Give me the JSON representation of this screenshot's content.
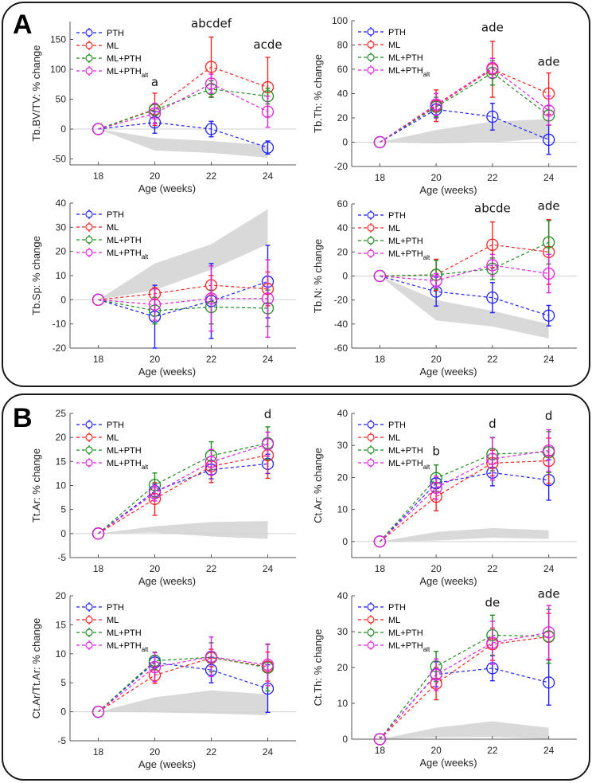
{
  "panels": [
    {
      "letter": "A"
    },
    {
      "letter": "B"
    }
  ],
  "legend": {
    "series": [
      {
        "name": "PTH",
        "base": "PTH",
        "sub": "",
        "color": "#1f1fff"
      },
      {
        "name": "ML",
        "base": "ML",
        "sub": "",
        "color": "#ff2020"
      },
      {
        "name": "ML+PTH",
        "base": "ML+PTH",
        "sub": "",
        "color": "#1e8c1e"
      },
      {
        "name": "ML+PTHalt",
        "base": "ML+PTH",
        "sub": "alt",
        "color": "#e020e0"
      }
    ]
  },
  "chart_data": [
    {
      "type": "line",
      "panel": "A",
      "position": "top-left",
      "ylabel": "Tb.BV/TV: % change",
      "xlabel": "Age (weeks)",
      "x": [
        18,
        20,
        22,
        24
      ],
      "xlim": [
        17,
        25
      ],
      "ylim": [
        -60,
        180
      ],
      "yticks": [
        -50,
        0,
        50,
        100,
        150
      ],
      "xticks": [
        18,
        20,
        22,
        24
      ],
      "legend": "top-left",
      "band": {
        "upper": [
          0,
          -15,
          -20,
          -27
        ],
        "lower": [
          0,
          -36,
          -40,
          -48
        ]
      },
      "series": [
        {
          "name": "PTH",
          "values": [
            0,
            11,
            0,
            -31
          ],
          "err": [
            0,
            18,
            13,
            11
          ]
        },
        {
          "name": "ML",
          "values": [
            0,
            33,
            104,
            70
          ],
          "err": [
            0,
            27,
            50,
            50
          ]
        },
        {
          "name": "ML+PTH",
          "values": [
            0,
            32,
            67,
            55
          ],
          "err": [
            0,
            10,
            14,
            13
          ]
        },
        {
          "name": "ML+PTHalt",
          "values": [
            0,
            26,
            76,
            29
          ],
          "err": [
            0,
            17,
            16,
            26
          ]
        }
      ],
      "annotations": [
        {
          "x": 20,
          "text": "a",
          "y": 72
        },
        {
          "x": 22,
          "text": "abcdef",
          "y": 170
        },
        {
          "x": 24,
          "text": "acde",
          "y": 135
        }
      ]
    },
    {
      "type": "line",
      "panel": "A",
      "position": "top-right",
      "ylabel": "Tb.Th: % change",
      "xlabel": "Age (weeks)",
      "x": [
        18,
        20,
        22,
        24
      ],
      "xlim": [
        17,
        25
      ],
      "ylim": [
        -20,
        100
      ],
      "yticks": [
        -20,
        0,
        20,
        40,
        60,
        80,
        100
      ],
      "xticks": [
        18,
        20,
        22,
        24
      ],
      "legend": "top-left",
      "band": {
        "upper": [
          0,
          10,
          17,
          19
        ],
        "lower": [
          0,
          -1,
          0,
          3
        ]
      },
      "series": [
        {
          "name": "PTH",
          "values": [
            0,
            27,
            21,
            2
          ],
          "err": [
            0,
            7,
            11,
            12
          ]
        },
        {
          "name": "ML",
          "values": [
            0,
            30,
            60,
            40
          ],
          "err": [
            0,
            13,
            23,
            17
          ]
        },
        {
          "name": "ML+PTH",
          "values": [
            0,
            29,
            57,
            22
          ],
          "err": [
            0,
            8,
            10,
            8
          ]
        },
        {
          "name": "ML+PTHalt",
          "values": [
            0,
            31,
            61,
            26
          ],
          "err": [
            0,
            9,
            8,
            12
          ]
        }
      ],
      "annotations": [
        {
          "x": 22,
          "text": "ade",
          "y": 91
        },
        {
          "x": 24,
          "text": "ade",
          "y": 63
        }
      ]
    },
    {
      "type": "line",
      "panel": "A",
      "position": "bottom-left",
      "ylabel": "Tb.Sp: % change",
      "xlabel": "Age (weeks)",
      "x": [
        18,
        20,
        22,
        24
      ],
      "xlim": [
        17,
        25
      ],
      "ylim": [
        -20,
        40
      ],
      "yticks": [
        -20,
        -10,
        0,
        10,
        20,
        30,
        40
      ],
      "xticks": [
        18,
        20,
        22,
        24
      ],
      "legend": "top-left",
      "band": {
        "upper": [
          0,
          15,
          23,
          37.5
        ],
        "lower": [
          0,
          4,
          12.5,
          23
        ]
      },
      "series": [
        {
          "name": "PTH",
          "values": [
            0,
            -7,
            -0.5,
            7.5
          ],
          "err": [
            0,
            13,
            15.5,
            15
          ]
        },
        {
          "name": "ML",
          "values": [
            0,
            2.5,
            6,
            4.5
          ],
          "err": [
            0,
            2.5,
            4,
            7
          ]
        },
        {
          "name": "ML+PTH",
          "values": [
            0,
            -4.5,
            -3,
            -3.5
          ],
          "err": [
            0,
            5.5,
            7,
            7.5
          ]
        },
        {
          "name": "ML+PTHalt",
          "values": [
            0,
            -2,
            0.5,
            0.5
          ],
          "err": [
            0,
            6.5,
            13.5,
            16
          ]
        }
      ],
      "annotations": []
    },
    {
      "type": "line",
      "panel": "A",
      "position": "bottom-right",
      "ylabel": "Tb.N: % change",
      "xlabel": "Age (weeks)",
      "x": [
        18,
        20,
        22,
        24
      ],
      "xlim": [
        17,
        25
      ],
      "ylim": [
        -60,
        60
      ],
      "yticks": [
        -60,
        -40,
        -20,
        0,
        20,
        40,
        60
      ],
      "xticks": [
        18,
        20,
        22,
        24
      ],
      "legend": "top-left",
      "band": {
        "upper": [
          0,
          -20,
          -29,
          -40
        ],
        "lower": [
          0,
          -37,
          -42,
          -52
        ]
      },
      "series": [
        {
          "name": "PTH",
          "values": [
            0,
            -13,
            -18,
            -33
          ],
          "err": [
            0,
            12,
            12.5,
            8.5
          ]
        },
        {
          "name": "ML",
          "values": [
            0,
            1,
            26,
            20
          ],
          "err": [
            0,
            13,
            19,
            27
          ]
        },
        {
          "name": "ML+PTH",
          "values": [
            0,
            1,
            6,
            28
          ],
          "err": [
            0,
            12,
            9,
            18
          ]
        },
        {
          "name": "ML+PTHalt",
          "values": [
            0,
            -4,
            9,
            2
          ],
          "err": [
            0,
            6,
            9,
            16
          ]
        }
      ],
      "annotations": [
        {
          "x": 22,
          "text": "abcde",
          "y": 53
        },
        {
          "x": 24,
          "text": "ade",
          "y": 55
        }
      ]
    },
    {
      "type": "line",
      "panel": "B",
      "position": "top-left",
      "ylabel": "Tt.Ar: % change",
      "xlabel": "Age (weeks)",
      "x": [
        18,
        20,
        22,
        24
      ],
      "xlim": [
        17,
        25
      ],
      "ylim": [
        -5,
        25
      ],
      "yticks": [
        -5,
        0,
        5,
        10,
        15,
        20,
        25
      ],
      "xticks": [
        18,
        20,
        22,
        24
      ],
      "legend": "top-left",
      "band": {
        "upper": [
          0,
          1.5,
          2.4,
          2.6
        ],
        "lower": [
          0,
          0.2,
          -0.6,
          -1.1
        ]
      },
      "series": [
        {
          "name": "PTH",
          "values": [
            0,
            8.8,
            13.3,
            14.5
          ],
          "err": [
            0,
            1.5,
            1.9,
            2.0
          ]
        },
        {
          "name": "ML",
          "values": [
            0,
            7.2,
            14.0,
            16.3
          ],
          "err": [
            0,
            3.4,
            3.4,
            4.8
          ]
        },
        {
          "name": "ML+PTH",
          "values": [
            0,
            10.1,
            16.2,
            18.8
          ],
          "err": [
            0,
            2.5,
            2.9,
            3.4
          ]
        },
        {
          "name": "ML+PTHalt",
          "values": [
            0,
            8.4,
            14.9,
            18.6
          ],
          "err": [
            0,
            1.6,
            2.6,
            2.5
          ]
        }
      ],
      "annotations": [
        {
          "x": 24,
          "text": "d",
          "y": 24
        }
      ]
    },
    {
      "type": "line",
      "panel": "B",
      "position": "top-right",
      "ylabel": "Ct.Ar: % change",
      "xlabel": "Age (weeks)",
      "x": [
        18,
        20,
        22,
        24
      ],
      "xlim": [
        17,
        25
      ],
      "ylim": [
        -5,
        40
      ],
      "yticks": [
        0,
        10,
        20,
        30,
        40
      ],
      "xticks": [
        18,
        20,
        22,
        24
      ],
      "legend": "top-left",
      "band": {
        "upper": [
          0,
          3,
          4.2,
          3.5
        ],
        "lower": [
          0,
          0.3,
          1.2,
          0.8
        ]
      },
      "series": [
        {
          "name": "PTH",
          "values": [
            0,
            18.2,
            21.5,
            19.2
          ],
          "err": [
            0,
            1.5,
            4.1,
            6.3
          ]
        },
        {
          "name": "ML",
          "values": [
            0,
            14,
            24.5,
            25.2
          ],
          "err": [
            0,
            4.4,
            4,
            7.1
          ]
        },
        {
          "name": "ML+PTH",
          "values": [
            0,
            19.8,
            27.3,
            27.9
          ],
          "err": [
            0,
            4.1,
            5.2,
            6.4
          ]
        },
        {
          "name": "ML+PTHalt",
          "values": [
            0,
            16.8,
            25.8,
            28.4
          ],
          "err": [
            0,
            3.6,
            6.6,
            6.5
          ]
        }
      ],
      "annotations": [
        {
          "x": 20,
          "text": "b",
          "y": 27
        },
        {
          "x": 22,
          "text": "d",
          "y": 35.5
        },
        {
          "x": 24,
          "text": "d",
          "y": 38
        }
      ]
    },
    {
      "type": "line",
      "panel": "B",
      "position": "bottom-left",
      "ylabel": "Ct.Ar/Tt.Ar: % change",
      "xlabel": "Age (weeks)",
      "x": [
        18,
        20,
        22,
        24
      ],
      "xlim": [
        17,
        25
      ],
      "ylim": [
        -5,
        20
      ],
      "yticks": [
        -5,
        0,
        5,
        10,
        15,
        20
      ],
      "xticks": [
        18,
        20,
        22,
        24
      ],
      "legend": "top-left",
      "band": {
        "upper": [
          0,
          2.5,
          3.7,
          3.0
        ],
        "lower": [
          0,
          -0.1,
          -0.3,
          -0.6
        ]
      },
      "series": [
        {
          "name": "PTH",
          "values": [
            0,
            8.5,
            7.2,
            4.0
          ],
          "err": [
            0,
            1.2,
            2.2,
            4.1
          ]
        },
        {
          "name": "ML",
          "values": [
            0,
            6.3,
            9.3,
            7.8
          ],
          "err": [
            0,
            1.4,
            1.5,
            2.5
          ]
        },
        {
          "name": "ML+PTH",
          "values": [
            0,
            8.8,
            9.4,
            7.6
          ],
          "err": [
            0,
            1.5,
            2.5,
            4.0
          ]
        },
        {
          "name": "ML+PTHalt",
          "values": [
            0,
            7.7,
            9.5,
            8.1
          ],
          "err": [
            0,
            2.5,
            3.4,
            3.6
          ]
        }
      ],
      "annotations": []
    },
    {
      "type": "line",
      "panel": "B",
      "position": "bottom-right",
      "ylabel": "Ct.Th: % change",
      "xlabel": "Age (weeks)",
      "x": [
        18,
        20,
        22,
        24
      ],
      "xlim": [
        17,
        25
      ],
      "ylim": [
        0,
        40
      ],
      "yticks": [
        0,
        10,
        20,
        30,
        40
      ],
      "xticks": [
        18,
        20,
        22,
        24
      ],
      "legend": "top-left",
      "band": {
        "upper": [
          0,
          3.2,
          5,
          3.2
        ],
        "lower": [
          0,
          0.5,
          0.6,
          0
        ]
      },
      "series": [
        {
          "name": "PTH",
          "values": [
            0,
            18.1,
            19.8,
            15.8
          ],
          "err": [
            0,
            3.5,
            3.5,
            6.3
          ]
        },
        {
          "name": "ML",
          "values": [
            0,
            15.5,
            26.5,
            28.6
          ],
          "err": [
            0,
            4.5,
            4.5,
            6.5
          ]
        },
        {
          "name": "ML+PTH",
          "values": [
            0,
            20.3,
            29,
            28.7
          ],
          "err": [
            0,
            4.2,
            5.6,
            7.5
          ]
        },
        {
          "name": "ML+PTHalt",
          "values": [
            0,
            18,
            26.9,
            29.8
          ],
          "err": [
            0,
            4.4,
            6,
            7.5
          ]
        }
      ],
      "annotations": [
        {
          "x": 22,
          "text": "de",
          "y": 37
        },
        {
          "x": 24,
          "text": "ade",
          "y": 39.5
        }
      ]
    }
  ]
}
